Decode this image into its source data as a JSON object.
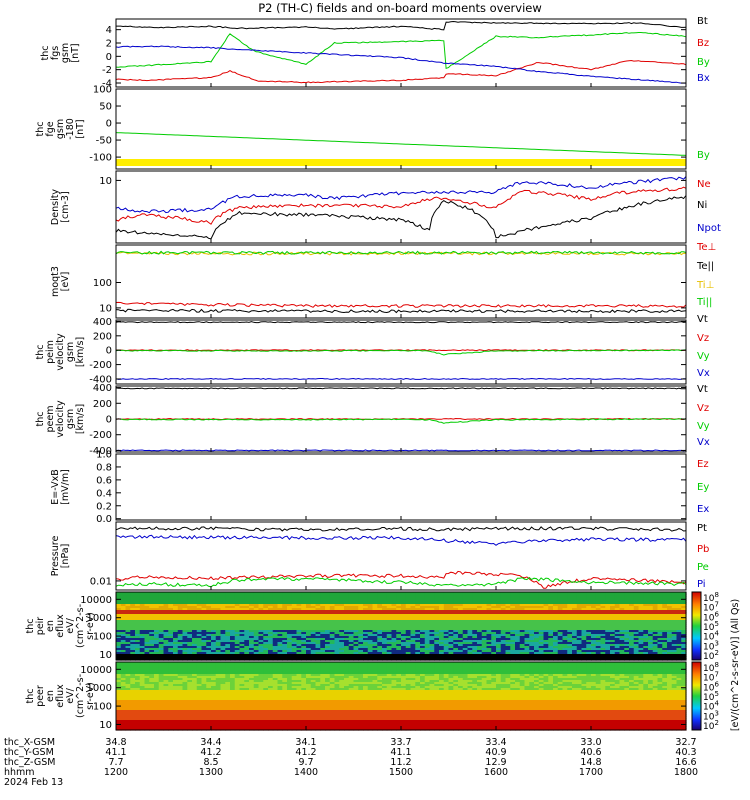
{
  "title": "P2 (TH-C) fields and on-board moments overview",
  "chart_data": [
    {
      "panel": "fgs-gsm",
      "type": "line",
      "ylabel": [
        "thc",
        "fgs",
        "gsm",
        "[nT]"
      ],
      "ylim": [
        -4.6,
        5.6
      ],
      "yticks": [
        4,
        2,
        0,
        -2,
        -4
      ],
      "series": [
        {
          "name": "Bt",
          "color": "#000000",
          "x": [
            1200,
            1240,
            1300,
            1330,
            1400,
            1430,
            1500,
            1545,
            1546,
            1600,
            1700,
            1750,
            1800
          ],
          "values": [
            4.6,
            4.3,
            4.5,
            4.2,
            4.4,
            4.1,
            4.5,
            4.0,
            5.2,
            5.0,
            4.9,
            5.0,
            4.3
          ]
        },
        {
          "name": "Bz",
          "color": "#e00000",
          "x": [
            1200,
            1230,
            1300,
            1320,
            1350,
            1400,
            1500,
            1545,
            1546,
            1600,
            1645,
            1700,
            1740,
            1800
          ],
          "values": [
            -3.4,
            -3.6,
            -3.2,
            -2.2,
            -3.7,
            -3.9,
            -3.6,
            -3.2,
            -2.6,
            -2.9,
            -0.9,
            -2.0,
            -0.6,
            -1.2
          ]
        },
        {
          "name": "By",
          "color": "#00cc00",
          "x": [
            1200,
            1230,
            1300,
            1320,
            1345,
            1400,
            1430,
            1500,
            1545,
            1546,
            1600,
            1640,
            1700,
            1750,
            1800
          ],
          "values": [
            -1.6,
            -1.4,
            -0.8,
            3.4,
            0.8,
            -1.2,
            2.0,
            2.2,
            2.4,
            -2.0,
            3.0,
            2.8,
            3.2,
            3.6,
            3.0
          ]
        },
        {
          "name": "Bx",
          "color": "#0000cc",
          "x": [
            1200,
            1240,
            1300,
            1330,
            1400,
            1500,
            1545,
            1600,
            1640,
            1700,
            1800
          ],
          "values": [
            1.4,
            1.5,
            1.3,
            1.0,
            0.5,
            -0.2,
            -1.0,
            -1.5,
            -2.2,
            -3.0,
            -4.0
          ]
        }
      ]
    },
    {
      "panel": "fge-gsm-180",
      "type": "line",
      "ylabel": [
        "thc",
        "fge",
        "gsm",
        "-180",
        "[nT]"
      ],
      "ylim": [
        -135,
        100
      ],
      "yticks": [
        100,
        50,
        0,
        -50,
        -100
      ],
      "series": [
        {
          "name": "By",
          "color": "#00cc00",
          "x": [
            1200,
            1800
          ],
          "values": [
            -28,
            -95
          ]
        }
      ]
    },
    {
      "panel": "density",
      "type": "line",
      "ylabel": [
        "Density",
        "[cm-3]"
      ],
      "ylim": [
        0.1,
        20
      ],
      "yscale": "log",
      "yticks": [
        10
      ],
      "series": [
        {
          "name": "Ne",
          "color": "#e00000",
          "x": [
            1200,
            1230,
            1300,
            1330,
            1400,
            1500,
            1540,
            1600,
            1630,
            1700,
            1730,
            1800
          ],
          "values": [
            0.55,
            0.8,
            0.45,
            1.4,
            1.6,
            1.5,
            2.8,
            1.3,
            4.5,
            2.5,
            4.0,
            5.5
          ]
        },
        {
          "name": "Ni",
          "color": "#000000",
          "x": [
            1200,
            1230,
            1300,
            1330,
            1400,
            1500,
            1530,
            1545,
            1600,
            1630,
            1700,
            1730,
            1800
          ],
          "values": [
            0.25,
            0.2,
            0.15,
            0.9,
            0.8,
            0.55,
            0.25,
            2.2,
            0.15,
            0.25,
            0.6,
            1.2,
            3.0
          ]
        },
        {
          "name": "Npot",
          "color": "#0000cc",
          "x": [
            1200,
            1230,
            1300,
            1330,
            1400,
            1430,
            1500,
            1600,
            1630,
            1700,
            1800
          ],
          "values": [
            1.3,
            1.0,
            1.2,
            3.2,
            3.5,
            2.6,
            4.0,
            4.3,
            9.0,
            6.0,
            12.0
          ]
        }
      ]
    },
    {
      "panel": "moments-temperature",
      "type": "line",
      "ylabel": [
        "moqt3",
        "[eV]"
      ],
      "ylim": [
        4,
        3000
      ],
      "yscale": "log",
      "yticks": [
        100,
        10
      ],
      "series": [
        {
          "name": "Te⊥",
          "color": "#e00000",
          "x": [
            1200,
            1400,
            1600,
            1800
          ],
          "values": [
            15,
            12,
            12,
            12
          ]
        },
        {
          "name": "Te||",
          "color": "#000000",
          "x": [
            1200,
            1400,
            1600,
            1800
          ],
          "values": [
            8,
            7.5,
            7.5,
            7.5
          ]
        },
        {
          "name": "Ti⊥",
          "color": "#e8c000",
          "x": [
            1200,
            1800
          ],
          "values": [
            1400,
            1400
          ]
        },
        {
          "name": "Ti||",
          "color": "#00cc00",
          "x": [
            1200,
            1800
          ],
          "values": [
            1500,
            1500
          ]
        }
      ]
    },
    {
      "panel": "peim-velocity",
      "type": "line",
      "ylabel": [
        "thc",
        "peim",
        "velocity",
        "gsm",
        "[km/s]"
      ],
      "ylim": [
        -470,
        420
      ],
      "yticks": [
        400,
        200,
        0,
        -200,
        -400
      ],
      "series": [
        {
          "name": "Vt",
          "color": "#000000",
          "x": [
            1200,
            1800
          ],
          "values": [
            390,
            390
          ]
        },
        {
          "name": "Vz",
          "color": "#e00000",
          "x": [
            1200,
            1800
          ],
          "values": [
            0,
            0
          ]
        },
        {
          "name": "Vy",
          "color": "#00cc00",
          "x": [
            1200,
            1400,
            1500,
            1530,
            1545,
            1600,
            1800
          ],
          "values": [
            -5,
            -10,
            -5,
            -10,
            -60,
            -10,
            0
          ]
        },
        {
          "name": "Vx",
          "color": "#0000cc",
          "x": [
            1200,
            1800
          ],
          "values": [
            -400,
            -400
          ]
        }
      ]
    },
    {
      "panel": "peem-velocity",
      "type": "line",
      "ylabel": [
        "thc",
        "peem",
        "velocity",
        "gsm",
        "[km/s]"
      ],
      "ylim": [
        -420,
        420
      ],
      "yticks": [
        400,
        200,
        0,
        -200,
        -400
      ],
      "series": [
        {
          "name": "Vt",
          "color": "#000000",
          "x": [
            1200,
            1800
          ],
          "values": [
            390,
            390
          ]
        },
        {
          "name": "Vz",
          "color": "#e00000",
          "x": [
            1200,
            1800
          ],
          "values": [
            0,
            0
          ]
        },
        {
          "name": "Vy",
          "color": "#00cc00",
          "x": [
            1200,
            1400,
            1500,
            1530,
            1545,
            1600,
            1800
          ],
          "values": [
            -5,
            -10,
            -5,
            -10,
            -50,
            -10,
            0
          ]
        },
        {
          "name": "Vx",
          "color": "#0000cc",
          "x": [
            1200,
            1800
          ],
          "values": [
            -400,
            -400
          ]
        }
      ]
    },
    {
      "panel": "e-field",
      "type": "line",
      "ylabel": [
        "E=-VxB",
        "[mV/m]"
      ],
      "ylim": [
        -0.02,
        1.0
      ],
      "yticks": [
        "1.0",
        "0.8",
        "0.6",
        "0.4",
        "0.2",
        "0.0"
      ],
      "series": [
        {
          "name": "Ez",
          "color": "#e00000",
          "x": [],
          "values": []
        },
        {
          "name": "Ey",
          "color": "#00cc00",
          "x": [],
          "values": []
        },
        {
          "name": "Ex",
          "color": "#0000cc",
          "x": [],
          "values": []
        }
      ]
    },
    {
      "panel": "pressure",
      "type": "line",
      "ylabel": [
        "Pressure",
        "[nPa]"
      ],
      "ylim": [
        0.005,
        0.9
      ],
      "yscale": "log",
      "yticks": [
        0.01
      ],
      "series": [
        {
          "name": "Pt",
          "color": "#000000",
          "x": [
            1200,
            1300,
            1400,
            1500,
            1545,
            1600,
            1700,
            1800
          ],
          "values": [
            0.55,
            0.55,
            0.5,
            0.55,
            0.5,
            0.55,
            0.55,
            0.5
          ]
        },
        {
          "name": "Pb",
          "color": "#e00000",
          "x": [
            1200,
            1230,
            1300,
            1330,
            1400,
            1500,
            1545,
            1546,
            1600,
            1630,
            1650,
            1700,
            1800
          ],
          "values": [
            0.011,
            0.014,
            0.012,
            0.013,
            0.015,
            0.015,
            0.013,
            0.019,
            0.017,
            0.014,
            0.006,
            0.012,
            0.009
          ]
        },
        {
          "name": "Pe",
          "color": "#00cc00",
          "x": [
            1200,
            1230,
            1300,
            1330,
            1400,
            1500,
            1545,
            1600,
            1630,
            1700,
            1800
          ],
          "values": [
            0.007,
            0.008,
            0.007,
            0.011,
            0.012,
            0.009,
            0.007,
            0.008,
            0.012,
            0.009,
            0.008
          ]
        },
        {
          "name": "Pi",
          "color": "#0000cc",
          "x": [
            1200,
            1300,
            1400,
            1500,
            1545,
            1600,
            1630,
            1700,
            1800
          ],
          "values": [
            0.3,
            0.28,
            0.27,
            0.27,
            0.22,
            0.17,
            0.2,
            0.24,
            0.23
          ]
        }
      ]
    },
    {
      "panel": "peir-en-eflux",
      "type": "heatmap",
      "ylabel": [
        "thc",
        "peir",
        "en",
        "eflux",
        "eV/",
        "(cm^2-s-",
        "sr-eV)"
      ],
      "ylim": [
        5,
        25000
      ],
      "yscale": "log",
      "yticks": [
        10000,
        1000,
        100,
        10
      ]
    },
    {
      "panel": "peer-en-eflux",
      "type": "heatmap",
      "ylabel": [
        "thc",
        "peer",
        "en",
        "eflux",
        "eV/",
        "(cm^2-s-",
        "sr-eV)"
      ],
      "ylim": [
        5,
        25000
      ],
      "yscale": "log",
      "yticks": [
        10000,
        1000,
        100,
        10
      ]
    }
  ],
  "colorbar": {
    "label": "[eV/(cm^2-s-sr-eV)] (All Qs)",
    "ticks": [
      "10^8",
      "10^7",
      "10^6",
      "10^5",
      "10^4",
      "10^3",
      "10^2"
    ],
    "ticks_lower": [
      "10^8",
      "10^7",
      "10^6",
      "10^5",
      "10^4",
      "10^3",
      "10^2"
    ]
  },
  "xaxis": {
    "row_labels": [
      "thc_X-GSM",
      "thc_Y-GSM",
      "thc_Z-GSM",
      "hhmm",
      "2024 Feb 13"
    ],
    "x_gsm": [
      "34.8",
      "34.4",
      "34.1",
      "33.7",
      "33.4",
      "33.0",
      "32.7"
    ],
    "y_gsm": [
      "41.1",
      "41.2",
      "41.2",
      "41.1",
      "40.9",
      "40.6",
      "40.3"
    ],
    "z_gsm": [
      "7.7",
      "8.5",
      "9.7",
      "11.2",
      "12.9",
      "14.8",
      "16.6"
    ],
    "hhmm": [
      "1200",
      "1300",
      "1400",
      "1500",
      "1600",
      "1700",
      "1800"
    ]
  }
}
